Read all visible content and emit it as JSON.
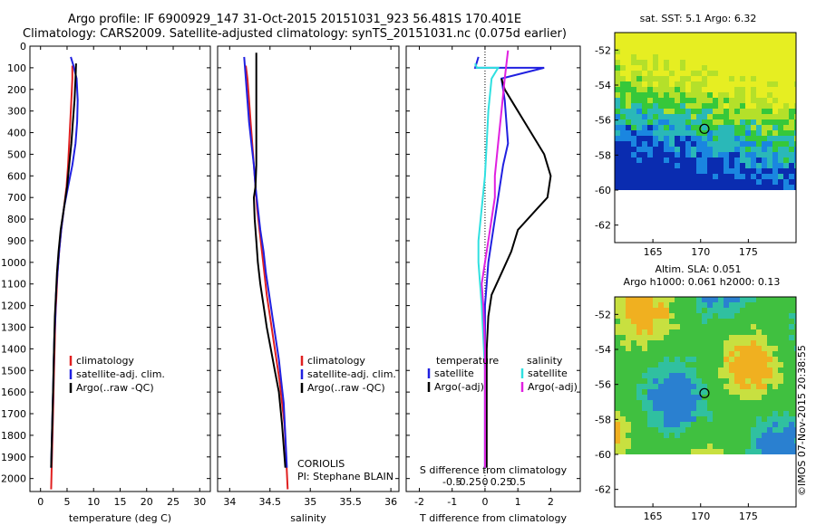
{
  "header": {
    "line1": "Argo profile: IF 6900929_147 31-Oct-2015 20151031_923 56.481S 170.401E",
    "line2": "Climatology: CARS2009. Satellite-adjusted climatology: synTS_20151031.nc (0.075d earlier)"
  },
  "colors": {
    "climatology": "#e02020",
    "satellite": "#2020e0",
    "argo": "#000000",
    "salinity_satellite": "#30e0e0",
    "salinity_argo": "#e020e0"
  },
  "chart_data": [
    {
      "type": "line",
      "xlabel": "temperature (deg C)",
      "xticks": [
        0,
        5,
        10,
        15,
        20,
        25,
        30
      ],
      "xlim": [
        -2,
        32
      ],
      "yticks": [
        0,
        100,
        200,
        300,
        400,
        500,
        600,
        700,
        800,
        900,
        1000,
        1100,
        1200,
        1300,
        1400,
        1500,
        1600,
        1700,
        1800,
        1900,
        2000
      ],
      "ylim": [
        2060,
        0
      ],
      "legend": {
        "placement": "lower-center",
        "entries": [
          "climatology",
          "satellite-adj. clim.",
          "Argo(..raw -QC)"
        ]
      },
      "series": [
        {
          "name": "climatology",
          "color": "#e02020",
          "x": [
            6.0,
            6.0,
            5.8,
            5.6,
            5.4,
            5.2,
            4.9,
            4.4,
            3.9,
            3.5,
            3.2,
            3.0,
            2.8,
            2.7,
            2.6,
            2.5,
            2.4,
            2.3,
            2.2,
            2.1,
            2.0
          ],
          "y": [
            90,
            150,
            250,
            350,
            450,
            550,
            650,
            750,
            850,
            950,
            1050,
            1150,
            1250,
            1350,
            1450,
            1550,
            1650,
            1750,
            1850,
            1950,
            2050
          ]
        },
        {
          "name": "satellite-adj. clim.",
          "color": "#2020e0",
          "x": [
            5.7,
            6.2,
            6.8,
            7.0,
            6.9,
            6.6,
            6.0,
            5.2,
            4.4,
            3.9,
            3.5,
            3.2,
            2.9,
            2.8,
            2.6,
            2.5,
            2.4,
            2.3,
            2.2,
            2.1,
            2.0
          ],
          "y": [
            50,
            90,
            150,
            250,
            350,
            450,
            550,
            650,
            750,
            850,
            950,
            1050,
            1150,
            1250,
            1350,
            1450,
            1550,
            1650,
            1750,
            1850,
            1950
          ]
        },
        {
          "name": "Argo(..raw -QC)",
          "color": "#000000",
          "x": [
            6.7,
            6.6,
            6.4,
            6.1,
            5.8,
            5.4,
            5.0,
            4.4,
            3.8,
            3.4,
            3.1,
            2.9,
            2.7,
            2.6,
            2.5,
            2.4,
            2.3,
            2.2,
            2.1,
            2.0
          ],
          "y": [
            80,
            150,
            250,
            350,
            450,
            550,
            650,
            750,
            850,
            950,
            1050,
            1150,
            1250,
            1350,
            1450,
            1550,
            1650,
            1750,
            1850,
            1950
          ]
        }
      ]
    },
    {
      "type": "line",
      "xlabel": "salinity",
      "xticks": [
        34,
        34.5,
        35,
        35.5,
        36
      ],
      "xlim": [
        33.85,
        36.1
      ],
      "ylim": [
        2060,
        0
      ],
      "legend": {
        "placement": "lower-center",
        "entries": [
          "climatology",
          "satellite-adj. clim.",
          "Argo(..raw -QC)"
        ]
      },
      "annotation": [
        "CORIOLIS",
        "PI: Stephane BLAIN"
      ],
      "series": [
        {
          "name": "climatology",
          "color": "#e02020",
          "x": [
            34.2,
            34.22,
            34.24,
            34.26,
            34.28,
            34.3,
            34.32,
            34.34,
            34.37,
            34.4,
            34.43,
            34.46,
            34.5,
            34.54,
            34.58,
            34.62,
            34.65,
            34.68,
            34.7,
            34.72
          ],
          "y": [
            90,
            150,
            250,
            350,
            450,
            550,
            650,
            750,
            850,
            950,
            1050,
            1150,
            1250,
            1350,
            1450,
            1550,
            1650,
            1750,
            1900,
            2050
          ]
        },
        {
          "name": "satellite-adj. clim.",
          "color": "#2020e0",
          "x": [
            34.18,
            34.2,
            34.22,
            34.24,
            34.27,
            34.3,
            34.32,
            34.35,
            34.38,
            34.42,
            34.45,
            34.49,
            34.53,
            34.57,
            34.61,
            34.64,
            34.67,
            34.69,
            34.71
          ],
          "y": [
            50,
            150,
            250,
            350,
            450,
            550,
            650,
            750,
            850,
            950,
            1050,
            1150,
            1250,
            1350,
            1450,
            1550,
            1650,
            1800,
            1950
          ]
        },
        {
          "name": "Argo(..raw -QC)",
          "color": "#000000",
          "x": [
            34.33,
            34.33,
            34.33,
            34.33,
            34.33,
            34.33,
            34.32,
            34.3,
            34.31,
            34.33,
            34.35,
            34.38,
            34.42,
            34.46,
            34.51,
            34.56,
            34.61,
            34.65,
            34.69
          ],
          "y": [
            30,
            150,
            250,
            350,
            450,
            550,
            650,
            700,
            800,
            900,
            1000,
            1100,
            1200,
            1300,
            1400,
            1500,
            1600,
            1750,
            1950
          ]
        }
      ]
    },
    {
      "type": "line",
      "xlabel": "T difference from climatology",
      "xlabel_top": "S difference from climatology",
      "xticks": [
        -2,
        -1,
        0,
        1,
        2
      ],
      "xticks_top": [
        "-0.5",
        "-0.25",
        "0",
        "0.25",
        "0.5"
      ],
      "xlim": [
        -2.4,
        2.9
      ],
      "ylim": [
        2060,
        0
      ],
      "legend": {
        "placement": "lower-center",
        "temperature_title": "temperature",
        "salinity_title": "salinity",
        "entries": [
          "satellite",
          "Argo(-adj)",
          "satellite",
          "Argo(-adj)"
        ]
      },
      "series": [
        {
          "name": "satellite",
          "color": "#2020e0",
          "x": [
            -0.2,
            -0.3,
            1.8,
            0.5,
            0.6,
            0.65,
            0.7,
            0.55,
            0.4,
            0.3,
            0.2,
            0.1,
            0.05,
            0.0,
            0.0,
            0.0,
            0.0,
            0.0,
            0.0
          ],
          "y": [
            50,
            100,
            100,
            150,
            250,
            350,
            450,
            550,
            700,
            800,
            900,
            1000,
            1100,
            1200,
            1300,
            1400,
            1500,
            1700,
            1950
          ]
        },
        {
          "name": "Argo(-adj)",
          "color": "#000000",
          "x": [
            0.5,
            0.6,
            1.0,
            1.4,
            1.8,
            2.0,
            1.9,
            1.6,
            1.0,
            0.8,
            0.5,
            0.2,
            0.1,
            0.05,
            0.05,
            0.05,
            0.05
          ],
          "y": [
            150,
            200,
            300,
            400,
            500,
            600,
            700,
            750,
            850,
            950,
            1050,
            1150,
            1250,
            1400,
            1600,
            1800,
            1950
          ]
        },
        {
          "name": "satellite",
          "color": "#30e0e0",
          "x": [
            -0.3,
            -0.25,
            0.4,
            0.2,
            0.1,
            0.05,
            0.0,
            -0.1,
            -0.2,
            -0.2,
            -0.15,
            -0.1,
            -0.05,
            0.0,
            0.0,
            0.0,
            0.0
          ],
          "y": [
            80,
            100,
            100,
            150,
            300,
            450,
            600,
            750,
            900,
            1000,
            1100,
            1200,
            1350,
            1500,
            1700,
            1850,
            1950
          ]
        },
        {
          "name": "Argo(-adj)",
          "color": "#e020e0",
          "x": [
            0.7,
            0.6,
            0.5,
            0.4,
            0.3,
            0.3,
            0.2,
            0.1,
            0.0,
            -0.1,
            -0.05,
            0.0,
            0.0,
            0.0,
            0.0
          ],
          "y": [
            20,
            150,
            300,
            450,
            600,
            700,
            800,
            900,
            1000,
            1100,
            1200,
            1400,
            1600,
            1800,
            1950
          ]
        }
      ]
    }
  ],
  "maps": {
    "sst": {
      "title": "sat. SST: 5.1  Argo: 6.32",
      "lon_ticks": [
        "165",
        "170",
        "175"
      ],
      "lat_ticks": [
        "-52",
        "-54",
        "-56",
        "-58",
        "-60",
        "-62"
      ],
      "marker_lon": 170.4,
      "marker_lat": -56.5
    },
    "sla": {
      "title1": "Altim. SLA: 0.051",
      "title2": "Argo h1000: 0.061 h2000: 0.13",
      "lon_ticks": [
        "165",
        "170",
        "175"
      ],
      "lat_ticks": [
        "-52",
        "-54",
        "-56",
        "-58",
        "-60",
        "-62"
      ],
      "marker_lon": 170.4,
      "marker_lat": -56.5
    }
  },
  "watermark": "©IMOS 07-Nov-2015 20:38:55"
}
